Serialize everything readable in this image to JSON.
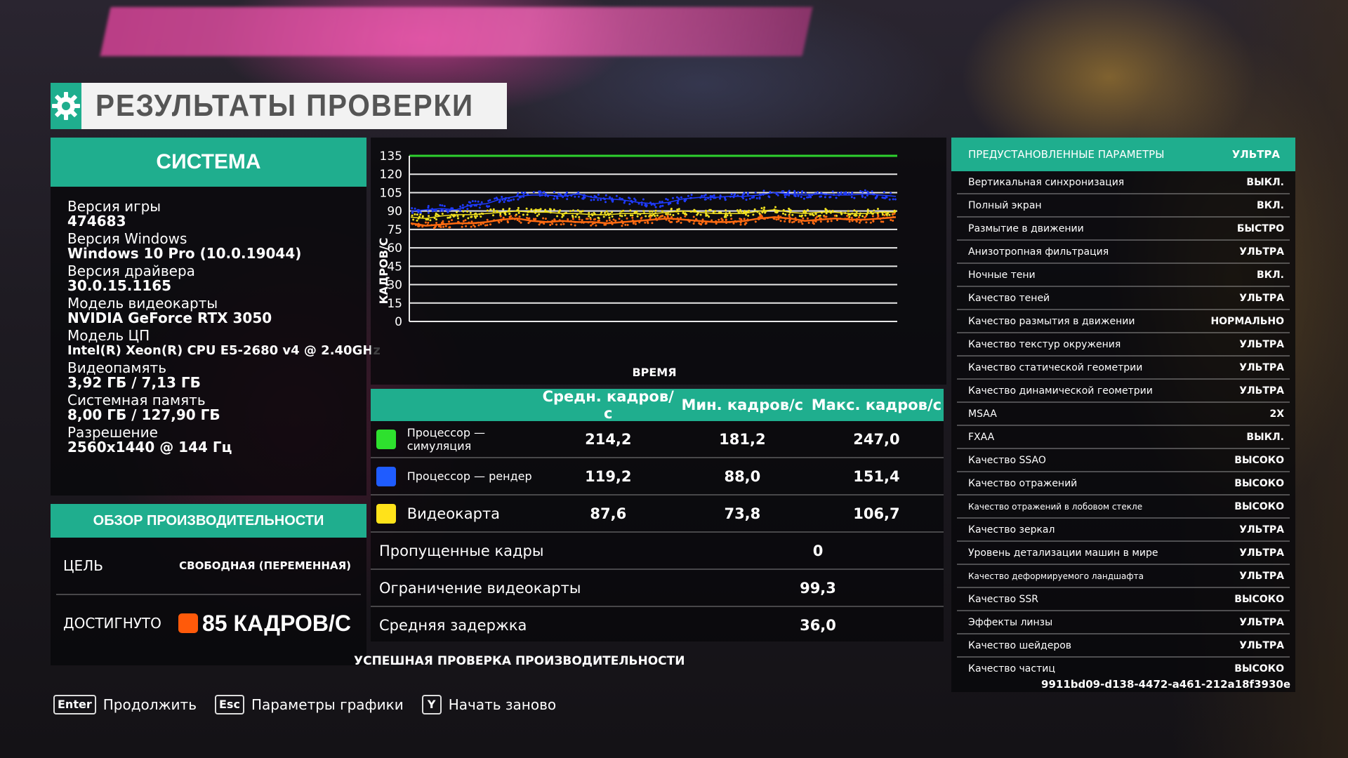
{
  "title": "РЕЗУЛЬТАТЫ ПРОВЕРКИ",
  "system": {
    "header": "СИСТЕМА",
    "items": [
      {
        "label": "Версия игры",
        "value": "474683"
      },
      {
        "label": "Версия Windows",
        "value": "Windows 10 Pro (10.0.19044)"
      },
      {
        "label": "Версия драйвера",
        "value": "30.0.15.1165"
      },
      {
        "label": "Модель видеокарты",
        "value": "NVIDIA GeForce RTX 3050"
      },
      {
        "label": "Модель ЦП",
        "value": "Intel(R) Xeon(R) CPU E5-2680 v4 @ 2.40GHz"
      },
      {
        "label": "Видеопамять",
        "value": "3,92 ГБ / 7,13 ГБ"
      },
      {
        "label": "Системная память",
        "value": "8,00 ГБ / 127,90 ГБ"
      },
      {
        "label": "Разрешение",
        "value": "2560x1440 @ 144 Гц"
      }
    ]
  },
  "performance": {
    "header": "ОБЗОР ПРОИЗВОДИТЕЛЬНОСТИ",
    "target_label": "ЦЕЛЬ",
    "target_value": "СВОБОДНАЯ (ПЕРЕМЕННАЯ)",
    "achieved_label": "ДОСТИГНУТО",
    "achieved_value": "85 КАДРОВ/С",
    "achieved_color": "#ff5a0a"
  },
  "chart_data": {
    "type": "scatter",
    "xlabel": "ВРЕМЯ",
    "ylabel": "КАДРОВ/С",
    "ylim": [
      0,
      135
    ],
    "yticks": [
      "135",
      "120",
      "105",
      "90",
      "75",
      "60",
      "45",
      "30",
      "15",
      "0"
    ],
    "grid": true,
    "reference_line": {
      "value": 135,
      "color": "#2ed12e"
    },
    "series": [
      {
        "color": "#1f3bff",
        "values": [
          90,
          91,
          92,
          91,
          95,
          96,
          100,
          102,
          103,
          103,
          102,
          104,
          101,
          100,
          99,
          97,
          96,
          97,
          100,
          101,
          101,
          102,
          102,
          103,
          105,
          104,
          103,
          104,
          103,
          103,
          104,
          103,
          102
        ]
      },
      {
        "color": "#f0e020",
        "values": [
          85,
          84,
          86,
          87,
          87,
          88,
          89,
          90,
          89,
          89,
          88,
          88,
          87,
          87,
          88,
          88,
          88,
          89,
          90,
          89,
          88,
          88,
          88,
          90,
          91,
          89,
          88,
          89,
          89,
          88,
          88,
          89,
          89
        ]
      },
      {
        "color": "#ff6a10",
        "values": [
          80,
          78,
          79,
          80,
          80,
          81,
          83,
          84,
          82,
          81,
          82,
          81,
          81,
          80,
          81,
          82,
          83,
          84,
          83,
          82,
          81,
          81,
          82,
          84,
          85,
          84,
          82,
          83,
          84,
          83,
          83,
          84,
          85
        ]
      }
    ]
  },
  "stats": {
    "headers": [
      "Средн. кадров/с",
      "Мин. кадров/с",
      "Макс. кадров/с"
    ],
    "rows": [
      {
        "name": "Процессор — симуляция",
        "color": "#2ee02e",
        "avg": "214,2",
        "min": "181,2",
        "max": "247,0"
      },
      {
        "name": "Процессор — рендер",
        "color": "#1f5cff",
        "avg": "119,2",
        "min": "88,0",
        "max": "151,4"
      },
      {
        "name": "Видеокарта",
        "color": "#ffe21a",
        "avg": "87,6",
        "min": "73,8",
        "max": "106,7"
      }
    ],
    "extras": [
      {
        "name": "Пропущенные кадры",
        "value": "0"
      },
      {
        "name": "Ограничение видеокарты",
        "value": "99,3"
      },
      {
        "name": "Средняя задержка",
        "value": "36,0"
      }
    ]
  },
  "success_text": "УСПЕШНАЯ ПРОВЕРКА ПРОИЗВОДИТЕЛЬНОСТИ",
  "settings": {
    "preset_label": "ПРЕДУСТАНОВЛЕННЫЕ ПАРАМЕТРЫ",
    "preset_value": "УЛЬТРА",
    "rows": [
      {
        "name": "Вертикальная синхронизация",
        "value": "ВЫКЛ."
      },
      {
        "name": "Полный экран",
        "value": "ВКЛ."
      },
      {
        "name": "Размытие в движении",
        "value": "БЫСТРО"
      },
      {
        "name": "Анизотропная фильтрация",
        "value": "УЛЬТРА"
      },
      {
        "name": "Ночные тени",
        "value": "ВКЛ."
      },
      {
        "name": "Качество теней",
        "value": "УЛЬТРА"
      },
      {
        "name": "Качество размытия в движении",
        "value": "НОРМАЛЬНО"
      },
      {
        "name": "Качество текстур окружения",
        "value": "УЛЬТРА"
      },
      {
        "name": "Качество статической геометрии",
        "value": "УЛЬТРА"
      },
      {
        "name": "Качество динамической геометрии",
        "value": "УЛЬТРА"
      },
      {
        "name": "MSAA",
        "value": "2X"
      },
      {
        "name": "FXAA",
        "value": "ВЫКЛ."
      },
      {
        "name": "Качество SSAO",
        "value": "ВЫСОКО"
      },
      {
        "name": "Качество отражений",
        "value": "ВЫСОКО"
      },
      {
        "name": "Качество отражений в лобовом стекле",
        "value": "ВЫСОКО"
      },
      {
        "name": "Качество зеркал",
        "value": "УЛЬТРА"
      },
      {
        "name": "Уровень детализации машин в мире",
        "value": "УЛЬТРА"
      },
      {
        "name": "Качество деформируемого ландшафта",
        "value": "УЛЬТРА"
      },
      {
        "name": "Качество SSR",
        "value": "ВЫСОКО"
      },
      {
        "name": "Эффекты линзы",
        "value": "УЛЬТРА"
      },
      {
        "name": "Качество шейдеров",
        "value": "УЛЬТРА"
      },
      {
        "name": "Качество частиц",
        "value": "ВЫСОКО"
      }
    ]
  },
  "run_id": "9911bd09-d138-4472-a461-212a18f3930e",
  "footer": [
    {
      "key": "Enter",
      "label": "Продолжить"
    },
    {
      "key": "Esc",
      "label": "Параметры графики"
    },
    {
      "key": "Y",
      "label": "Начать заново"
    }
  ],
  "accent_color": "#1fae8e"
}
